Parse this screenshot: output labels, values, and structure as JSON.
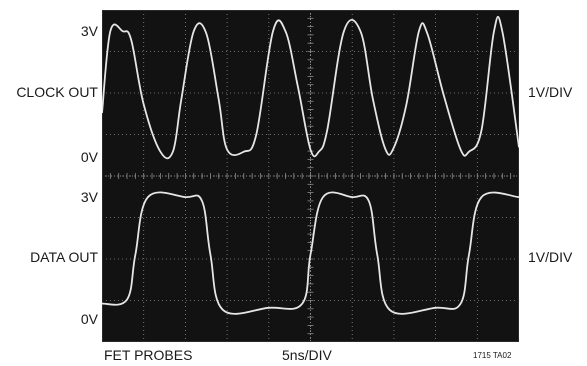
{
  "labels": {
    "ch1_top": "3V",
    "ch1_name": "CLOCK OUT",
    "ch1_bottom": "0V",
    "ch1_scale": "1V/DIV",
    "ch2_top": "3V",
    "ch2_name": "DATA OUT",
    "ch2_bottom": "0V",
    "ch2_scale": "1V/DIV",
    "probe": "FET PROBES",
    "timebase": "5ns/DIV",
    "figure_id": "1715 TA02"
  },
  "colors": {
    "screen": "#121212",
    "grid": "#8a8a8a",
    "trace": "#e6e6e6"
  },
  "chart_data": {
    "type": "line",
    "grid": true,
    "x_divisions": 10,
    "y_divisions": 8,
    "x_unit": "ns",
    "x_per_div": 5,
    "xlim": [
      0,
      50
    ],
    "series": [
      {
        "volts_per_div": 1,
        "ylim": [
          0,
          3
        ],
        "x": [
          0,
          1,
          2.5,
          3.5,
          5,
          7,
          8.5,
          9.5,
          11,
          12.5,
          14,
          15,
          17,
          18.5,
          20.5,
          22,
          23.5,
          25,
          26,
          27,
          29,
          31,
          32.5,
          34,
          35,
          36.5,
          38,
          39,
          41,
          43,
          44,
          45.5,
          47,
          48,
          50
        ],
        "y": [
          1.0,
          2.9,
          2.9,
          2.7,
          1.2,
          0.1,
          0.1,
          1.3,
          2.9,
          2.85,
          1.3,
          0.15,
          0.1,
          0.5,
          2.9,
          2.9,
          1.6,
          0.15,
          0.1,
          0.6,
          2.9,
          2.9,
          1.3,
          0.15,
          0.2,
          1.2,
          2.9,
          2.85,
          1.4,
          0.15,
          0.1,
          0.6,
          2.9,
          2.9,
          0.2
        ]
      },
      {
        "volts_per_div": 1,
        "ylim": [
          0,
          3
        ],
        "x": [
          0,
          3,
          4,
          5.5,
          10,
          12,
          13,
          14.5,
          20,
          24,
          25,
          26.5,
          30,
          32,
          33,
          34.5,
          40,
          43,
          44,
          45.5,
          50
        ],
        "y": [
          0.3,
          0.4,
          1.5,
          2.9,
          2.9,
          2.8,
          1.5,
          0.15,
          0.2,
          0.3,
          1.5,
          2.9,
          2.9,
          2.8,
          1.5,
          0.15,
          0.2,
          0.3,
          1.5,
          2.9,
          2.9
        ]
      }
    ]
  }
}
